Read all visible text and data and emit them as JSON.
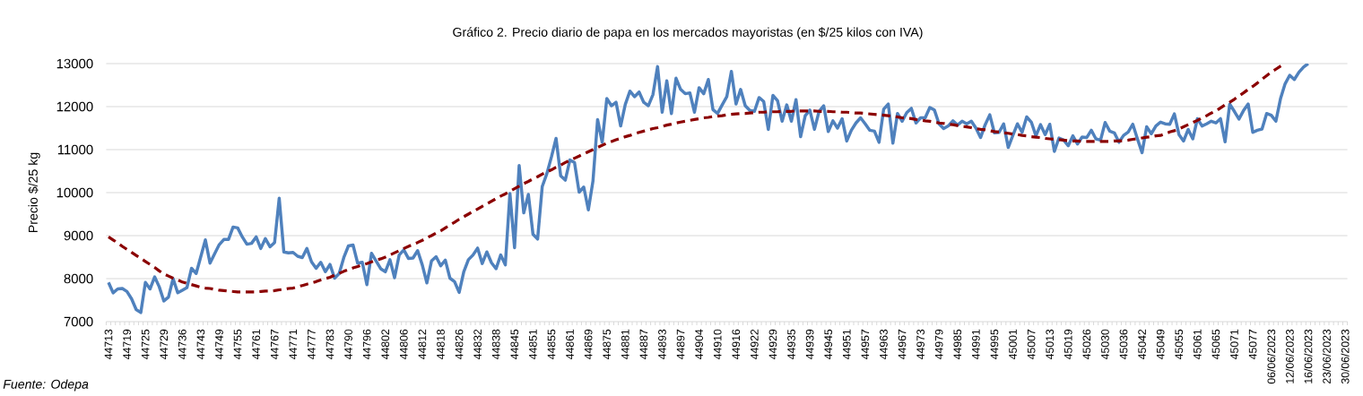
{
  "chart_data": {
    "type": "line",
    "title": "Gráfico 2. Precio diario de papa en los mercados mayoristas (en $/25 kilos con IVA)",
    "ylabel": "Precio $/25 kg",
    "annotations": [
      "Fuente: Odepa"
    ],
    "categories": [
      "44713",
      null,
      null,
      null,
      "44719",
      null,
      null,
      null,
      "44725",
      null,
      null,
      null,
      "44729",
      null,
      null,
      null,
      "44736",
      null,
      null,
      null,
      "44743",
      null,
      null,
      null,
      "44749",
      null,
      null,
      null,
      "44755",
      null,
      null,
      null,
      "44761",
      null,
      null,
      null,
      "44767",
      null,
      null,
      null,
      "44771",
      null,
      null,
      null,
      "44777",
      null,
      null,
      null,
      "44783",
      null,
      null,
      null,
      "44790",
      null,
      null,
      null,
      "44796",
      null,
      null,
      null,
      "44802",
      null,
      null,
      null,
      "44806",
      null,
      null,
      null,
      "44812",
      null,
      null,
      null,
      "44818",
      null,
      null,
      null,
      "44826",
      null,
      null,
      null,
      "44832",
      null,
      null,
      null,
      "44838",
      null,
      null,
      null,
      "44845",
      null,
      null,
      null,
      "44851",
      null,
      null,
      null,
      "44855",
      null,
      null,
      null,
      "44861",
      null,
      null,
      null,
      "44869",
      null,
      null,
      null,
      "44875",
      null,
      null,
      null,
      "44881",
      null,
      null,
      null,
      "44887",
      null,
      null,
      null,
      "44893",
      null,
      null,
      null,
      "44897",
      null,
      null,
      null,
      "44904",
      null,
      null,
      null,
      "44910",
      null,
      null,
      null,
      "44916",
      null,
      null,
      null,
      "44922",
      null,
      null,
      null,
      "44929",
      null,
      null,
      null,
      "44935",
      null,
      null,
      null,
      "44939",
      null,
      null,
      null,
      "44945",
      null,
      null,
      null,
      "44951",
      null,
      null,
      null,
      "44957",
      null,
      null,
      null,
      "44963",
      null,
      null,
      null,
      "44967",
      null,
      null,
      null,
      "44973",
      null,
      null,
      null,
      "44979",
      null,
      null,
      null,
      "44985",
      null,
      null,
      null,
      "44991",
      null,
      null,
      null,
      "44995",
      null,
      null,
      null,
      "45001",
      null,
      null,
      null,
      "45007",
      null,
      null,
      null,
      "45013",
      null,
      null,
      null,
      "45019",
      null,
      null,
      null,
      "45026",
      null,
      null,
      null,
      "45030",
      null,
      null,
      null,
      "45036",
      null,
      null,
      null,
      "45042",
      null,
      null,
      null,
      "45049",
      null,
      null,
      null,
      "45055",
      null,
      null,
      null,
      "45061",
      null,
      null,
      null,
      "45065",
      null,
      null,
      null,
      "45071",
      null,
      null,
      null,
      "45077",
      null,
      null,
      null,
      "06/06/2023",
      null,
      null,
      null,
      "12/06/2023",
      null,
      null,
      null,
      "16/06/2023",
      null,
      null,
      null,
      "23/06/2023",
      null,
      null,
      null,
      "30/06/2023"
    ],
    "series": [
      {
        "color": "#4F81BD",
        "line_style": "solid",
        "values": [
          7910,
          7670,
          7760,
          7770,
          7700,
          7530,
          7280,
          7210,
          7910,
          7760,
          8040,
          7810,
          7480,
          7570,
          8000,
          7670,
          7730,
          7790,
          8240,
          8120,
          8510,
          8900,
          8360,
          8580,
          8790,
          8910,
          8910,
          9200,
          9180,
          8970,
          8800,
          8820,
          8970,
          8700,
          8930,
          8740,
          8840,
          9870,
          8620,
          8600,
          8610,
          8520,
          8490,
          8700,
          8390,
          8240,
          8380,
          8160,
          8330,
          8010,
          8120,
          8490,
          8760,
          8780,
          8360,
          8380,
          7860,
          8590,
          8410,
          8230,
          8160,
          8440,
          8020,
          8550,
          8670,
          8470,
          8480,
          8650,
          8320,
          7900,
          8410,
          8510,
          8300,
          8430,
          8010,
          7930,
          7680,
          8160,
          8440,
          8550,
          8710,
          8350,
          8620,
          8370,
          8230,
          8550,
          8320,
          9980,
          8720,
          10630,
          9530,
          9960,
          9030,
          8920,
          10140,
          10440,
          10830,
          11260,
          10390,
          10290,
          10760,
          10700,
          10010,
          10130,
          9600,
          10270,
          11700,
          11170,
          12190,
          12020,
          12100,
          11550,
          12050,
          12360,
          12230,
          12340,
          12100,
          12020,
          12280,
          12930,
          11870,
          12600,
          11840,
          12660,
          12400,
          12300,
          12320,
          11870,
          12440,
          12300,
          12630,
          11930,
          11840,
          12040,
          12230,
          12820,
          12060,
          12400,
          12020,
          11910,
          11890,
          12210,
          12120,
          11470,
          12260,
          12140,
          11660,
          12040,
          11660,
          12160,
          11300,
          11790,
          11920,
          11470,
          11890,
          12020,
          11420,
          11670,
          11500,
          11720,
          11200,
          11450,
          11620,
          11740,
          11600,
          11450,
          11430,
          11170,
          11940,
          12060,
          11150,
          11840,
          11660,
          11860,
          11960,
          11620,
          11740,
          11740,
          11980,
          11920,
          11600,
          11490,
          11550,
          11670,
          11570,
          11660,
          11600,
          11660,
          11500,
          11280,
          11580,
          11810,
          11390,
          11400,
          11600,
          11050,
          11330,
          11600,
          11400,
          11760,
          11640,
          11320,
          11580,
          11350,
          11590,
          10960,
          11270,
          11220,
          11090,
          11320,
          11130,
          11290,
          11280,
          11450,
          11250,
          11220,
          11630,
          11430,
          11390,
          11170,
          11330,
          11410,
          11590,
          11250,
          10930,
          11530,
          11370,
          11550,
          11640,
          11600,
          11590,
          11830,
          11350,
          11200,
          11470,
          11250,
          11720,
          11550,
          11600,
          11660,
          11620,
          11720,
          11180,
          12060,
          11890,
          11710,
          11910,
          12060,
          11400,
          11450,
          11480,
          11840,
          11800,
          11660,
          12180,
          12530,
          12730,
          12630,
          12800,
          12920,
          13000,
          null,
          null,
          null,
          null,
          null,
          null,
          null,
          null
        ]
      },
      {
        "color": "#8B0000",
        "line_style": "dashed",
        "values": [
          8970,
          8900,
          8830,
          8750,
          8680,
          8610,
          8540,
          8470,
          8400,
          8330,
          8260,
          8180,
          8110,
          8060,
          8010,
          7970,
          7920,
          7890,
          7860,
          7830,
          7800,
          7780,
          7770,
          7750,
          7730,
          7720,
          7710,
          7700,
          7690,
          7690,
          7690,
          7690,
          7690,
          7700,
          7710,
          7710,
          7720,
          7740,
          7750,
          7770,
          7780,
          7810,
          7840,
          7870,
          7900,
          7930,
          7970,
          8000,
          8030,
          8080,
          8120,
          8170,
          8210,
          8250,
          8280,
          8320,
          8350,
          8390,
          8430,
          8460,
          8500,
          8550,
          8600,
          8650,
          8700,
          8750,
          8800,
          8840,
          8890,
          8950,
          9000,
          9060,
          9110,
          9180,
          9250,
          9310,
          9380,
          9440,
          9500,
          9560,
          9620,
          9680,
          9740,
          9800,
          9860,
          9920,
          9970,
          10030,
          10090,
          10150,
          10210,
          10260,
          10320,
          10370,
          10430,
          10480,
          10530,
          10590,
          10640,
          10700,
          10750,
          10800,
          10850,
          10900,
          10950,
          11000,
          11050,
          11100,
          11150,
          11190,
          11230,
          11260,
          11300,
          11330,
          11370,
          11400,
          11430,
          11460,
          11490,
          11510,
          11540,
          11570,
          11590,
          11620,
          11640,
          11660,
          11680,
          11700,
          11720,
          11740,
          11750,
          11770,
          11780,
          11790,
          11810,
          11820,
          11830,
          11840,
          11840,
          11850,
          11860,
          11870,
          11870,
          11880,
          11880,
          11880,
          11890,
          11890,
          11890,
          11900,
          11900,
          11900,
          11900,
          11900,
          11890,
          11890,
          11890,
          11880,
          11880,
          11870,
          11870,
          11860,
          11850,
          11850,
          11840,
          11830,
          11820,
          11810,
          11800,
          11790,
          11770,
          11760,
          11740,
          11730,
          11720,
          11700,
          11690,
          11670,
          11660,
          11640,
          11620,
          11610,
          11590,
          11580,
          11560,
          11540,
          11530,
          11510,
          11490,
          11470,
          11460,
          11440,
          11420,
          11410,
          11390,
          11380,
          11360,
          11350,
          11330,
          11320,
          11300,
          11290,
          11280,
          11260,
          11250,
          11240,
          11230,
          11220,
          11210,
          11200,
          11200,
          11190,
          11190,
          11190,
          11190,
          11190,
          11190,
          11190,
          11200,
          11200,
          11210,
          11220,
          11240,
          11250,
          11270,
          11290,
          11300,
          11320,
          11330,
          11370,
          11410,
          11440,
          11480,
          11530,
          11580,
          11630,
          11680,
          11740,
          11790,
          11850,
          11900,
          11970,
          12040,
          12100,
          12170,
          12250,
          12320,
          12400,
          12470,
          12550,
          12640,
          12720,
          12800,
          12870,
          12940,
          13000,
          null,
          null,
          null,
          null,
          null,
          null,
          null,
          null,
          null,
          null,
          null,
          null,
          null
        ]
      }
    ],
    "ylim": [
      7000,
      13000
    ],
    "yticks": [
      7000,
      8000,
      9000,
      10000,
      11000,
      12000,
      13000
    ],
    "grid": "y",
    "marker": "none"
  }
}
